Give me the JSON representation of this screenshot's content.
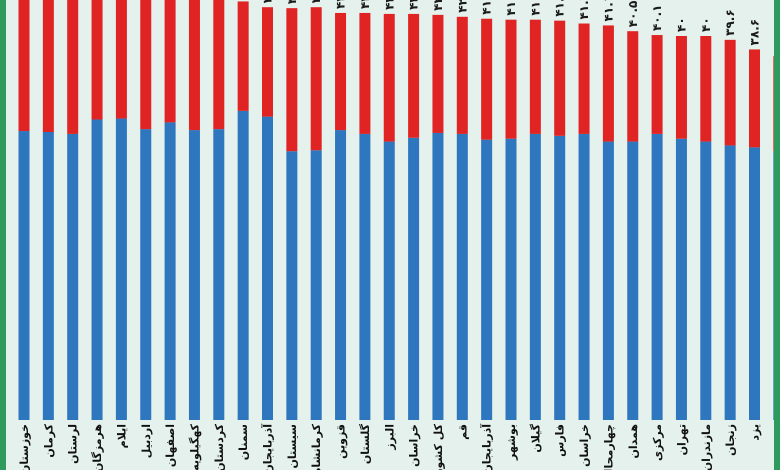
{
  "chart_data": {
    "type": "bar",
    "stacked": true,
    "colors": {
      "blue": "#2e76bd",
      "red": "#e02424",
      "background": "#e4f1ec",
      "border": "#2f9a5e"
    },
    "categories": [
      "خوزستان",
      "کرمان",
      "لرستان",
      "هرمزگان",
      "ایلام",
      "اردبیل",
      "اصفهان",
      "کهگیلویه",
      "کردستان",
      "سمنان",
      "آذربایجان",
      "سیستان",
      "کرمانشاه",
      "قزوین",
      "گلستان",
      "البرز",
      "خراسان",
      "کل کشور",
      "قم",
      "آذربایجان",
      "بوشهر",
      "گیلان",
      "فارس",
      "خراسان",
      "چهارمحال",
      "همدان",
      "مرکزی",
      "تهران",
      "مازندران",
      "زنجان",
      "یزد",
      "خراسان"
    ],
    "value_labels": [
      "",
      "",
      "",
      "",
      "",
      "",
      "",
      "",
      "",
      "",
      "۴۳",
      "۴۳",
      "۴۳",
      "۴۲.۴",
      "۴۲.۴",
      "۴۲.۳",
      "۴۲.۳",
      "۴۲.۲",
      "۴۲",
      "۴۱.۸",
      "۴۱.۷",
      "۴۱.۷",
      "۴۱.۶",
      "۴۱.۳",
      "۴۱.۱",
      "۴۰.۵",
      "۴۰.۱",
      "۴۰",
      "۴۰",
      "۳۹.۶",
      "۳۸.۶",
      "۳۷.۹"
    ],
    "series": [
      {
        "color": "#2e76bd",
        "values": [
          30.1,
          30.0,
          29.8,
          31.3,
          31.4,
          30.3,
          31.0,
          30.2,
          30.3,
          32.2,
          31.6,
          28.0,
          28.1,
          30.2,
          29.8,
          29.0,
          29.4,
          29.9,
          29.8,
          29.2,
          29.3,
          29.8,
          29.6,
          29.8,
          29.0,
          29.0,
          29.8,
          29.3,
          29.0,
          28.6,
          28.4,
          28.0
        ]
      },
      {
        "color": "#e02424",
        "values": [
          14.9,
          14.9,
          14.9,
          13.5,
          13.3,
          14.2,
          13.4,
          14.2,
          14.0,
          11.4,
          11.4,
          14.9,
          14.9,
          12.2,
          12.6,
          13.3,
          12.9,
          12.3,
          12.2,
          12.6,
          12.4,
          11.9,
          12.0,
          11.5,
          12.1,
          11.5,
          10.3,
          10.7,
          11.0,
          11.0,
          10.2,
          9.9
        ]
      }
    ]
  }
}
